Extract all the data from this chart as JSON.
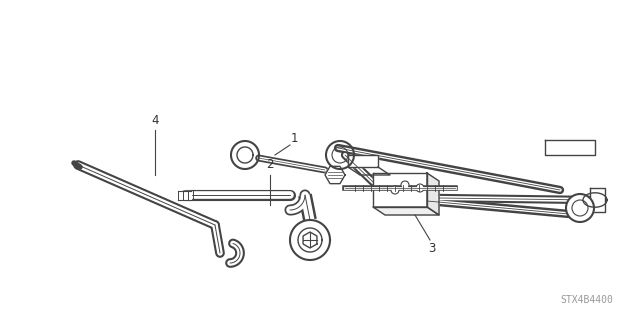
{
  "background_color": "#ffffff",
  "line_color": "#444444",
  "label_color": "#333333",
  "part_number": "STX4B4400",
  "lw": 1.0,
  "fig_width": 6.4,
  "fig_height": 3.19,
  "dpi": 100
}
